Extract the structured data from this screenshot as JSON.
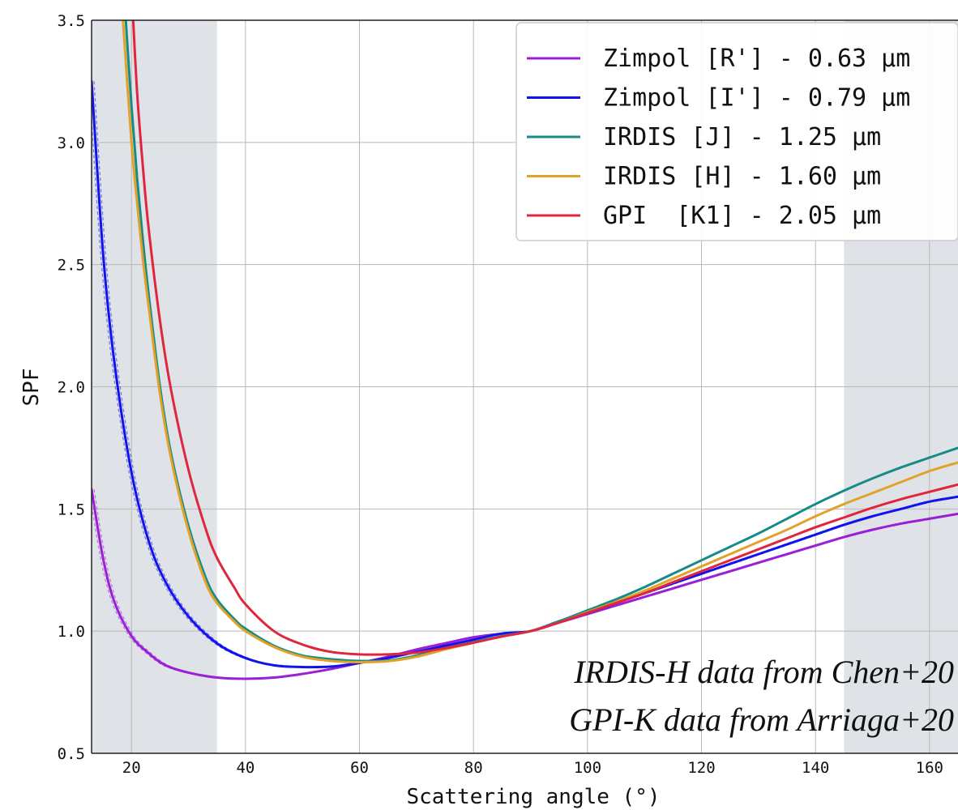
{
  "chart_data": {
    "type": "line",
    "xlabel": "Scattering angle (°)",
    "ylabel": "SPF",
    "xlim": [
      13,
      165
    ],
    "ylim": [
      0.5,
      3.5
    ],
    "xticks": [
      "20",
      "40",
      "60",
      "80",
      "100",
      "120",
      "140",
      "160"
    ],
    "yticks": [
      "0.5",
      "1.0",
      "1.5",
      "2.0",
      "2.5",
      "3.0",
      "3.5"
    ],
    "grid": true,
    "legend_position": "top-right",
    "shaded_regions": [
      [
        13,
        35
      ],
      [
        145,
        165
      ]
    ],
    "shade_color": "#dfe2e6",
    "annotations": [
      "IRDIS-H data from Chen+20",
      "GPI-K data from Arriaga+20"
    ],
    "series": [
      {
        "name": "Zimpol [R'] - 0.63 µm",
        "color": "#9a1fd6",
        "x": [
          13,
          15,
          17,
          20,
          23,
          26,
          30,
          35,
          40,
          45,
          50,
          55,
          60,
          65,
          70,
          75,
          80,
          85,
          90,
          95,
          100,
          105,
          110,
          115,
          120,
          125,
          130,
          135,
          140,
          145,
          150,
          155,
          160,
          165
        ],
        "y": [
          1.58,
          1.3,
          1.12,
          0.98,
          0.91,
          0.86,
          0.83,
          0.81,
          0.805,
          0.81,
          0.825,
          0.845,
          0.87,
          0.895,
          0.925,
          0.95,
          0.975,
          0.99,
          1.0,
          1.035,
          1.07,
          1.105,
          1.14,
          1.175,
          1.21,
          1.245,
          1.28,
          1.315,
          1.35,
          1.385,
          1.415,
          1.44,
          1.46,
          1.48
        ]
      },
      {
        "name": "Zimpol [I'] - 0.79 µm",
        "color": "#1212ee",
        "x": [
          13,
          15,
          17,
          20,
          23,
          26,
          30,
          35,
          40,
          45,
          50,
          55,
          60,
          65,
          70,
          75,
          80,
          85,
          90,
          95,
          100,
          105,
          110,
          115,
          120,
          125,
          130,
          135,
          140,
          145,
          150,
          155,
          160,
          165
        ],
        "y": [
          3.25,
          2.55,
          2.1,
          1.65,
          1.37,
          1.2,
          1.06,
          0.95,
          0.89,
          0.86,
          0.853,
          0.855,
          0.87,
          0.89,
          0.915,
          0.94,
          0.965,
          0.99,
          1.0,
          1.04,
          1.075,
          1.115,
          1.155,
          1.195,
          1.235,
          1.275,
          1.315,
          1.355,
          1.395,
          1.435,
          1.47,
          1.5,
          1.53,
          1.55
        ]
      },
      {
        "name": "IRDIS [J] - 1.25 µm",
        "color": "#178b86",
        "x": [
          19,
          20,
          21,
          22,
          23,
          25,
          27,
          30,
          33,
          35,
          38,
          40,
          45,
          50,
          55,
          60,
          65,
          70,
          75,
          80,
          85,
          90,
          95,
          100,
          105,
          110,
          115,
          120,
          125,
          130,
          135,
          140,
          145,
          150,
          155,
          160,
          165
        ],
        "y": [
          3.5,
          3.15,
          2.85,
          2.6,
          2.38,
          2.0,
          1.72,
          1.43,
          1.22,
          1.13,
          1.05,
          1.01,
          0.94,
          0.9,
          0.885,
          0.878,
          0.88,
          0.9,
          0.93,
          0.955,
          0.98,
          1.0,
          1.04,
          1.085,
          1.13,
          1.18,
          1.235,
          1.29,
          1.345,
          1.4,
          1.46,
          1.52,
          1.575,
          1.625,
          1.67,
          1.71,
          1.75
        ]
      },
      {
        "name": "IRDIS [H] - 1.60 µm",
        "color": "#e1a22a",
        "x": [
          18.5,
          20,
          21,
          22,
          23,
          25,
          27,
          30,
          33,
          35,
          38,
          40,
          45,
          50,
          55,
          60,
          65,
          70,
          75,
          80,
          85,
          90,
          95,
          100,
          105,
          110,
          115,
          120,
          125,
          130,
          135,
          140,
          145,
          150,
          155,
          160,
          165
        ],
        "y": [
          3.5,
          3.0,
          2.75,
          2.52,
          2.33,
          1.97,
          1.7,
          1.41,
          1.2,
          1.115,
          1.04,
          1.0,
          0.935,
          0.895,
          0.878,
          0.873,
          0.877,
          0.895,
          0.925,
          0.952,
          0.978,
          1.0,
          1.035,
          1.078,
          1.12,
          1.165,
          1.215,
          1.265,
          1.315,
          1.365,
          1.415,
          1.47,
          1.52,
          1.565,
          1.61,
          1.655,
          1.69
        ]
      },
      {
        "name": "GPI  [K1] - 2.05 µm",
        "color": "#e0263e",
        "x": [
          20.3,
          21,
          22,
          23,
          25,
          27,
          30,
          33,
          35,
          38,
          40,
          45,
          50,
          55,
          60,
          65,
          70,
          75,
          80,
          85,
          90,
          95,
          100,
          105,
          110,
          115,
          120,
          125,
          130,
          135,
          140,
          145,
          150,
          155,
          160,
          165
        ],
        "y": [
          3.5,
          3.2,
          2.9,
          2.65,
          2.27,
          1.98,
          1.66,
          1.42,
          1.3,
          1.18,
          1.11,
          1.0,
          0.945,
          0.915,
          0.905,
          0.905,
          0.912,
          0.93,
          0.953,
          0.978,
          1.0,
          1.035,
          1.075,
          1.115,
          1.155,
          1.2,
          1.245,
          1.29,
          1.335,
          1.38,
          1.425,
          1.465,
          1.505,
          1.54,
          1.57,
          1.6
        ]
      }
    ]
  }
}
